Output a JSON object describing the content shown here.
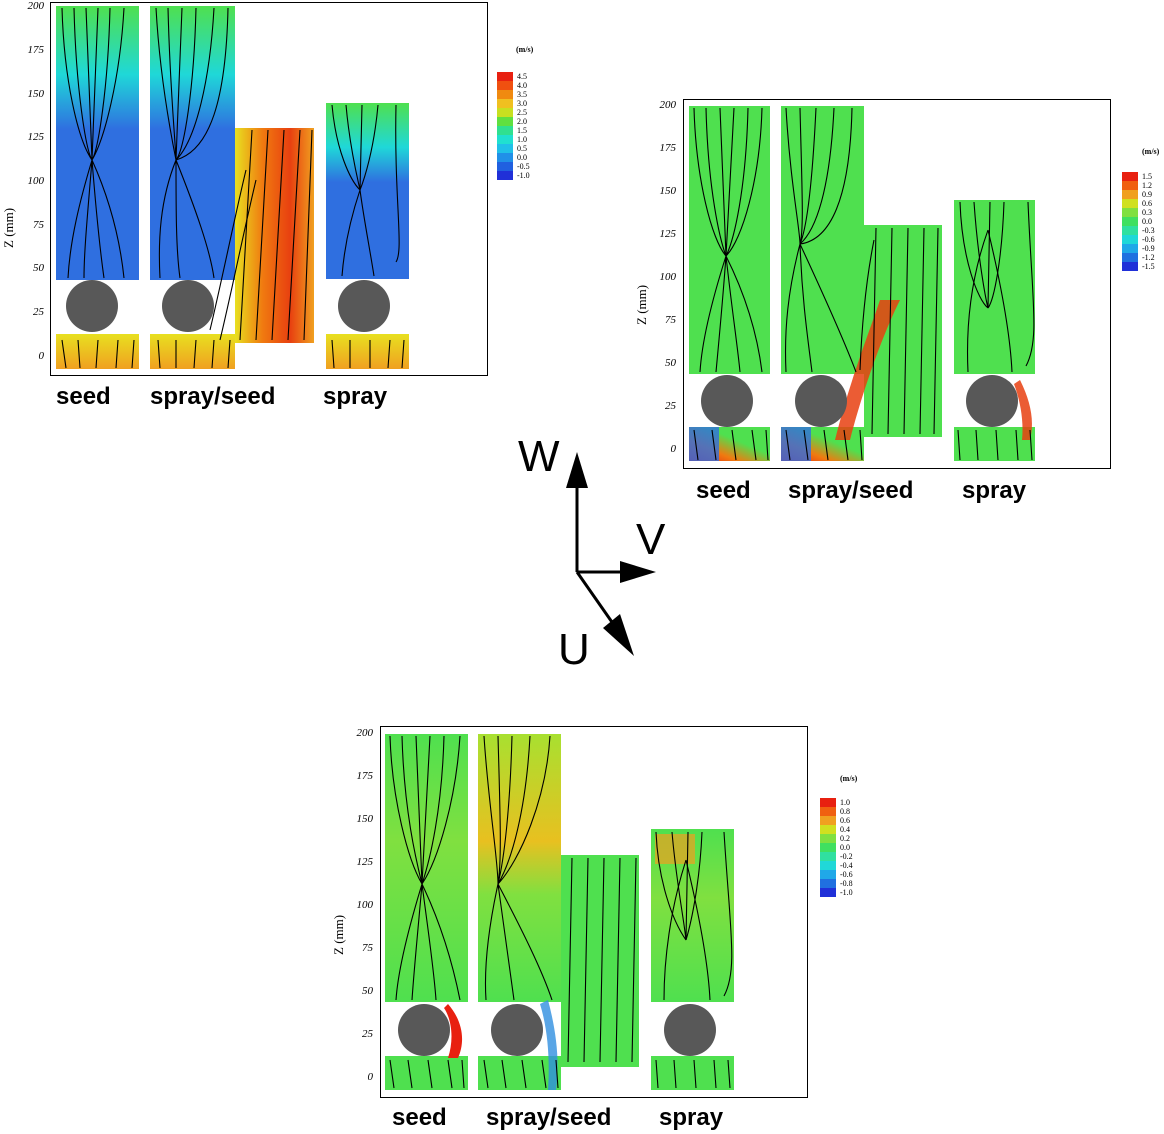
{
  "panels": [
    {
      "id": "W",
      "unit": "(m/s)",
      "ylabel": "Z (mm)",
      "yticks": [
        "200",
        "175",
        "150",
        "125",
        "100",
        "75",
        "50",
        "25",
        "0"
      ],
      "categories": [
        "seed",
        "spray/seed",
        "spray"
      ],
      "colorbar": [
        "4.5",
        "4.0",
        "3.5",
        "3.0",
        "2.5",
        "2.0",
        "1.5",
        "1.0",
        "0.5",
        "0.0",
        "-0.5",
        "-1.0"
      ]
    },
    {
      "id": "V",
      "unit": "(m/s)",
      "ylabel": "Z (mm)",
      "yticks": [
        "200",
        "175",
        "150",
        "125",
        "100",
        "75",
        "50",
        "25",
        "0"
      ],
      "categories": [
        "seed",
        "spray/seed",
        "spray"
      ],
      "colorbar": [
        "1.5",
        "1.2",
        "0.9",
        "0.6",
        "0.3",
        "0.0",
        "-0.3",
        "-0.6",
        "-0.9",
        "-1.2",
        "-1.5"
      ]
    },
    {
      "id": "U",
      "unit": "(m/s)",
      "ylabel": "Z (mm)",
      "yticks": [
        "200",
        "175",
        "150",
        "125",
        "100",
        "75",
        "50",
        "25",
        "0"
      ],
      "categories": [
        "seed",
        "spray/seed",
        "spray"
      ],
      "colorbar": [
        "1.0",
        "0.8",
        "0.6",
        "0.4",
        "0.2",
        "0.0",
        "-0.2",
        "-0.4",
        "-0.6",
        "-0.8",
        "-1.0"
      ]
    }
  ],
  "axes_glyph": {
    "w": "W",
    "v": "V",
    "u": "U"
  },
  "colors": {
    "blue": "#2f6fe0",
    "cyan": "#1fd8d8",
    "green": "#4fe04f",
    "yellow": "#e8e020",
    "orange": "#f07a10",
    "red": "#e82010",
    "cylinder": "#585858"
  }
}
